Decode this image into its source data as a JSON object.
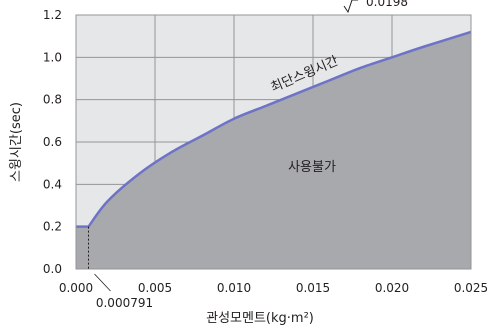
{
  "chart_data": {
    "type": "area",
    "x_domain": [
      0.0,
      0.025
    ],
    "y_domain": [
      0.0,
      1.2
    ],
    "x_ticks": [
      0.0,
      0.005,
      0.01,
      0.015,
      0.02,
      0.025
    ],
    "x_tick_labels": [
      "0.000",
      "0.005",
      "0.010",
      "0.015",
      "0.020",
      "0.025"
    ],
    "y_ticks": [
      0.0,
      0.2,
      0.4,
      0.6,
      0.8,
      1.0,
      1.2
    ],
    "y_tick_labels": [
      "0.0",
      "0.2",
      "0.4",
      "0.6",
      "0.8",
      "1.0",
      "1.2"
    ],
    "xlabel": "관성모멘트(kg·m²)",
    "ylabel": "스윙시간(sec)",
    "grid": true,
    "series": [
      {
        "name": "최단스윙시간",
        "x": [
          0.0,
          0.000791,
          0.002,
          0.004,
          0.006,
          0.008,
          0.01,
          0.012,
          0.014,
          0.016,
          0.018,
          0.02,
          0.022,
          0.025
        ],
        "y": [
          0.2,
          0.2,
          0.32,
          0.45,
          0.55,
          0.63,
          0.71,
          0.77,
          0.83,
          0.89,
          0.95,
          1.0,
          1.05,
          1.12
        ]
      }
    ],
    "annotations": {
      "curve_label": "최단스윙시간",
      "region_label": "사용불가",
      "breakpoint_x": 0.000791,
      "breakpoint_label": "0.000791",
      "top_formula_fragment": "0.0198"
    },
    "colors": {
      "plot_background": "#e6e7e8",
      "shaded_region": "#a7a9ac",
      "curve": "#6e73c8",
      "grid": "#939598",
      "text": "#231f20"
    }
  }
}
